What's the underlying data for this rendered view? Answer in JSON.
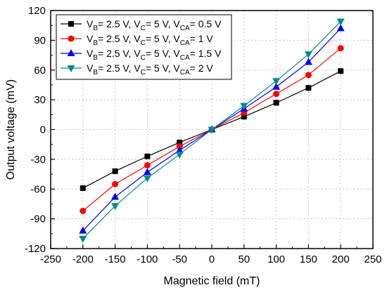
{
  "chart_data": {
    "type": "line",
    "xlabel": "Magnetic field (mT)",
    "ylabel": "Output voltage (mV)",
    "xlim": [
      -250,
      250
    ],
    "ylim": [
      -120,
      120
    ],
    "x_ticks": [
      -250,
      -200,
      -150,
      -100,
      -50,
      0,
      50,
      100,
      150,
      200,
      250
    ],
    "y_ticks": [
      -120,
      -90,
      -60,
      -30,
      0,
      30,
      60,
      90,
      120
    ],
    "grid": true,
    "legend_position": "top-left",
    "x": [
      -200,
      -150,
      -100,
      -50,
      0,
      50,
      100,
      150,
      200
    ],
    "series": [
      {
        "name": "VB= 2.5 V, VC= 5 V, VCA= 0.5 V",
        "legend_parts": [
          [
            "V",
            ""
          ],
          [
            "B",
            "sub"
          ],
          [
            "= 2.5 V, V",
            ""
          ],
          [
            "C",
            "sub"
          ],
          [
            "= 5 V, V",
            ""
          ],
          [
            "CA",
            "sub"
          ],
          [
            "= 0.5 V",
            ""
          ]
        ],
        "color": "#000000",
        "marker": "square",
        "values": [
          -59,
          -42,
          -27,
          -13,
          0,
          13,
          27,
          42,
          59
        ]
      },
      {
        "name": "VB= 2.5 V, VC= 5 V, VCA= 1 V",
        "legend_parts": [
          [
            "V",
            ""
          ],
          [
            "B",
            "sub"
          ],
          [
            "= 2.5 V, V",
            ""
          ],
          [
            "C",
            "sub"
          ],
          [
            "= 5 V, V",
            ""
          ],
          [
            "CA",
            "sub"
          ],
          [
            "= 1 V",
            ""
          ]
        ],
        "color": "#ff0000",
        "marker": "circle",
        "values": [
          -82,
          -55,
          -36,
          -17,
          0,
          17,
          36,
          55,
          82
        ]
      },
      {
        "name": "VB= 2.5 V, VC= 5 V, VCA= 1.5 V",
        "legend_parts": [
          [
            "V",
            ""
          ],
          [
            "B",
            "sub"
          ],
          [
            "= 2.5 V, V",
            ""
          ],
          [
            "C",
            "sub"
          ],
          [
            "= 5 V, V",
            ""
          ],
          [
            "CA",
            "sub"
          ],
          [
            "= 1.5 V",
            ""
          ]
        ],
        "color": "#0000ff",
        "marker": "triangle-up",
        "values": [
          -102,
          -68,
          -43,
          -21,
          0,
          21,
          43,
          68,
          102
        ]
      },
      {
        "name": "VB= 2.5 V, VC= 5 V, VCA= 2 V",
        "legend_parts": [
          [
            "V",
            ""
          ],
          [
            "B",
            "sub"
          ],
          [
            "= 2.5 V, V",
            ""
          ],
          [
            "C",
            "sub"
          ],
          [
            "= 5 V, V",
            ""
          ],
          [
            "CA",
            "sub"
          ],
          [
            "= 2 V",
            ""
          ]
        ],
        "color": "#008b8b",
        "marker": "triangle-down",
        "values": [
          -110,
          -77,
          -49,
          -25,
          0,
          24,
          49,
          76,
          109
        ]
      }
    ]
  }
}
